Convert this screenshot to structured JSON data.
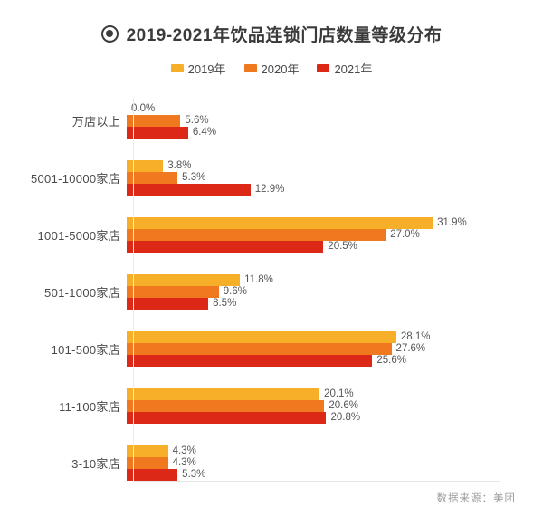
{
  "chart_data": {
    "type": "bar",
    "orientation": "horizontal",
    "title": "2019-2021年饮品连锁门店数量等级分布",
    "categories": [
      "万店以上",
      "5001-10000家店",
      "1001-5000家店",
      "501-1000家店",
      "101-500家店",
      "11-100家店",
      "3-10家店"
    ],
    "series": [
      {
        "name": "2019年",
        "color": "#F7AF29",
        "values": [
          0.0,
          3.8,
          31.9,
          11.8,
          28.1,
          20.1,
          4.3
        ]
      },
      {
        "name": "2020年",
        "color": "#F0781E",
        "values": [
          5.6,
          5.3,
          27.0,
          9.6,
          27.6,
          20.6,
          4.3
        ]
      },
      {
        "name": "2021年",
        "color": "#DB2817",
        "values": [
          6.4,
          12.9,
          20.5,
          8.5,
          25.6,
          20.8,
          5.3
        ]
      }
    ],
    "value_suffix": "%",
    "xlim": [
      0,
      35
    ],
    "grid": false,
    "legend_position": "top",
    "source": "数据来源：美团"
  }
}
